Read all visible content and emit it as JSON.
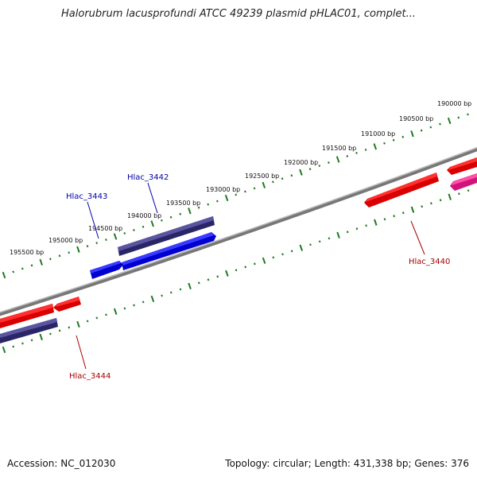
{
  "title": "Halorubrum lacusprofundi ATCC 49239 plasmid pHLAC01, complet...",
  "footer": {
    "accession": "Accession: NC_012030",
    "summary": "Topology: circular; Length: 431,338 bp; Genes: 376"
  },
  "colors": {
    "backbone": "#808080",
    "ticks": "#1e7a1e",
    "forward_label": "#0000aa",
    "reverse_label": "#aa0000",
    "gene_red": "#ee0000",
    "gene_blue": "#0000ee",
    "gene_navy": "#3f3a80",
    "gene_magenta": "#e0208a"
  },
  "tick_labels": [
    "190000 bp",
    "190500 bp",
    "191000 bp",
    "191500 bp",
    "192000 bp",
    "192500 bp",
    "193000 bp",
    "193500 bp",
    "194000 bp",
    "194500 bp",
    "195000 bp",
    "195500 bp"
  ],
  "gene_labels": {
    "hlac_3442": "Hlac_3442",
    "hlac_3443": "Hlac_3443",
    "hlac_3440": "Hlac_3440",
    "hlac_3444": "Hlac_3444"
  }
}
